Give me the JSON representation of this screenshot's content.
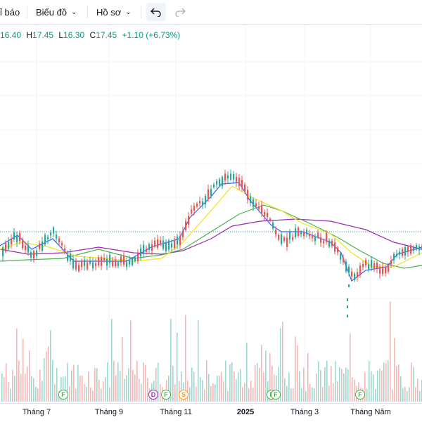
{
  "toolbar": {
    "items": [
      {
        "label": "ỉ báo"
      },
      {
        "label": "Biểu đồ"
      },
      {
        "label": "Hồ sơ"
      }
    ],
    "undo_icon": "undo-icon",
    "redo_icon": "redo-icon"
  },
  "ohlc": {
    "open": "16.40",
    "high": "17.45",
    "low": "16.30",
    "close": "17.45",
    "change": "+1.10 (+6.73%)",
    "labels": {
      "h": "H",
      "l": "L",
      "c": "C"
    }
  },
  "colors": {
    "up": "#26a69a",
    "down": "#ef5350",
    "ma_fast": "#2962ff",
    "ma_mid": "#f5e21b",
    "ma_slow": "#4caf50",
    "ma_long": "#9c27b0",
    "vol_up": "#9fd8cf",
    "vol_down": "#f5b7b5"
  },
  "xaxis": {
    "labels": [
      "Tháng 7",
      "Tháng 9",
      "Tháng 11",
      "2025",
      "Tháng 3",
      "Tháng Năm"
    ]
  },
  "events": [
    {
      "letter": "F",
      "color": "#4caf50"
    },
    {
      "letter": "D",
      "color": "#9c27b0"
    },
    {
      "letter": "F",
      "color": "#4caf50"
    },
    {
      "letter": "S",
      "color": "#ff9800"
    },
    {
      "letter": "F",
      "color": "#4caf50"
    },
    {
      "letter": "F",
      "color": "#4caf50"
    },
    {
      "letter": "F",
      "color": "#4caf50"
    }
  ],
  "chart_data": {
    "type": "candlestick",
    "x": [
      "Tháng 7",
      "Tháng 9",
      "Tháng 11",
      "2025",
      "Tháng 3",
      "Tháng Năm"
    ],
    "close_trend": [
      16.6,
      16.8,
      16.3,
      16.9,
      20.2,
      18.0,
      17.0,
      13.6,
      15.9,
      17.45
    ],
    "last_close": 17.45
  }
}
